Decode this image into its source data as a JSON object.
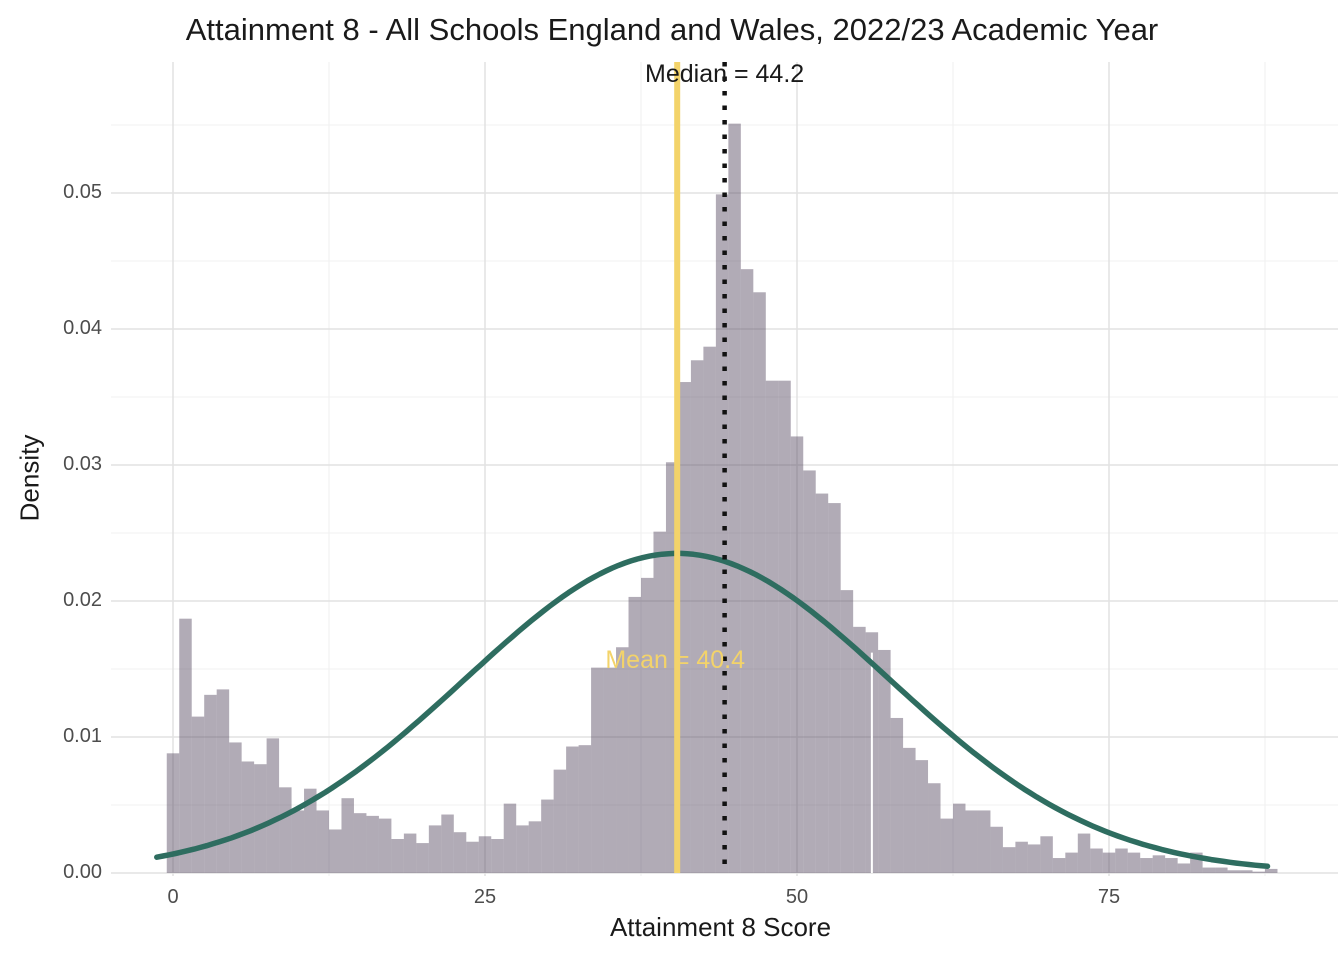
{
  "chart_data": {
    "type": "bar",
    "subtype": "histogram-with-normal-density-overlay",
    "title": "Attainment 8 - All Schools England and Wales, 2022/23 Academic Year",
    "xlabel": "Attainment 8 Score",
    "ylabel": "Density",
    "x_ticks": [
      {
        "label": "0",
        "value": 0
      },
      {
        "label": "25",
        "value": 25
      },
      {
        "label": "50",
        "value": 50
      },
      {
        "label": "75",
        "value": 75
      }
    ],
    "y_ticks": [
      {
        "label": "0.00",
        "value": 0.0
      },
      {
        "label": "0.01",
        "value": 0.01
      },
      {
        "label": "0.02",
        "value": 0.02
      },
      {
        "label": "0.03",
        "value": 0.03
      },
      {
        "label": "0.04",
        "value": 0.04
      },
      {
        "label": "0.05",
        "value": 0.05
      }
    ],
    "x_minor_gridlines": [
      12.5,
      37.5,
      62.5,
      87.5
    ],
    "y_minor_gridlines": [
      0.005,
      0.015,
      0.025,
      0.035,
      0.045,
      0.055
    ],
    "xlim": [
      -5,
      93.5
    ],
    "ylim": [
      0,
      0.0597
    ],
    "grid": true,
    "bin_width": 1,
    "first_bin_center": 0,
    "densities": [
      0.0088,
      0.0187,
      0.0115,
      0.0131,
      0.0135,
      0.0096,
      0.0082,
      0.008,
      0.0099,
      0.0063,
      0.0046,
      0.0062,
      0.0046,
      0.0032,
      0.0055,
      0.0044,
      0.0042,
      0.004,
      0.0025,
      0.0029,
      0.0022,
      0.0035,
      0.0043,
      0.003,
      0.0023,
      0.0027,
      0.0025,
      0.0051,
      0.0035,
      0.0038,
      0.0054,
      0.0076,
      0.0093,
      0.0094,
      0.0151,
      0.0151,
      0.0166,
      0.0203,
      0.0217,
      0.0251,
      0.0302,
      0.0361,
      0.0377,
      0.0387,
      0.0499,
      0.0551,
      0.0444,
      0.0427,
      0.0362,
      0.0362,
      0.0321,
      0.0296,
      0.0279,
      0.0272,
      0.0208,
      0.0181,
      0.0177,
      0.0164,
      0.0114,
      0.0092,
      0.0083,
      0.0066,
      0.004,
      0.0051,
      0.0046,
      0.0046,
      0.0034,
      0.0019,
      0.0023,
      0.0021,
      0.0027,
      0.0011,
      0.0015,
      0.0029,
      0.0018,
      0.0015,
      0.0018,
      0.0015,
      0.0011,
      0.0013,
      0.0011,
      0.0007,
      0.0015,
      0.0004,
      0.0004,
      0.0002,
      0.0002,
      0.0001,
      0.0003
    ],
    "normal_curve": {
      "mean": 40.4,
      "sd": 17,
      "peak_density": 0.0235,
      "x_start": -1.3,
      "x_end": 88
    },
    "mean_line": {
      "value": 40.4,
      "label": "Mean = 40.4"
    },
    "median_line": {
      "value": 44.2,
      "label": "Median = 44.2",
      "style": "dotted"
    },
    "artifact_line": {
      "score": 56,
      "from_density": 0.0162
    },
    "colors": {
      "background": "#FFFFFF",
      "bar_fill": "rgba(85,73,95,0.46)",
      "curve": "#2E6D60",
      "mean_line": "#F3D36A",
      "median_line": "#111111",
      "grid_major": "#E2E2E2",
      "grid_minor": "#F0F0F0",
      "tick_text": "#4D4D4D",
      "text": "#1A1A1A"
    }
  }
}
